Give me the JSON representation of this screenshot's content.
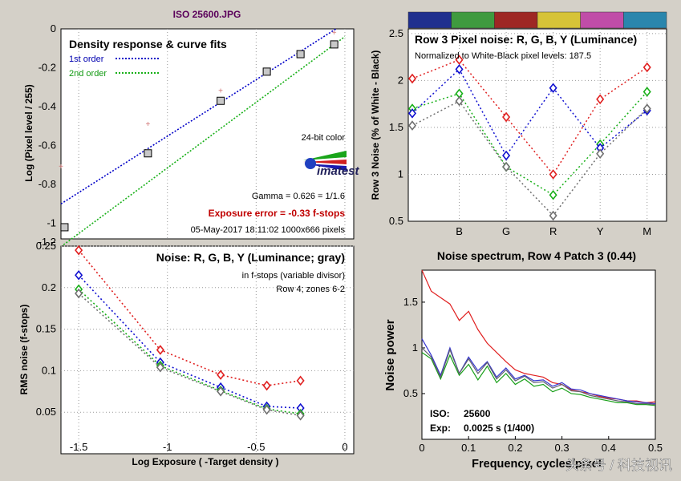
{
  "file_title": "ISO 25600.JPG",
  "watermark": "头条号 / 科技视讯",
  "imatest_logo_text": "imatest",
  "chart_data": [
    {
      "type": "scatter",
      "title": "Density response & curve fits",
      "legend": [
        "1st order",
        "2nd order"
      ],
      "xlabel": "Log Exposure ( -Target density )",
      "ylabel": "Log (Pixel level / 255)",
      "xlim": [
        -1.6,
        0.05
      ],
      "ylim": [
        -1.08,
        0
      ],
      "xticks": [
        "-1.5",
        "-1",
        "-0.5",
        "0"
      ],
      "yticks": [
        "0",
        "-0.2",
        "-0.4",
        "-0.6",
        "-0.8",
        "-1",
        "-1.2"
      ],
      "measured": {
        "x": [
          -1.58,
          -1.11,
          -0.7,
          -0.44,
          -0.25,
          -0.06
        ],
        "y": [
          -1.02,
          -0.64,
          -0.37,
          -0.22,
          -0.13,
          -0.08
        ]
      },
      "density_points": {
        "x": [
          -1.6,
          -1.11,
          -0.7,
          -0.06
        ],
        "y": [
          -0.71,
          -0.49,
          -0.32,
          -0.02
        ]
      },
      "fit_1st": {
        "x": [
          -1.6,
          -0.05
        ],
        "y": [
          -0.9,
          0.0
        ]
      },
      "fit_2nd": {
        "x": [
          -1.6,
          0.0
        ],
        "y": [
          -1.12,
          -0.04
        ]
      },
      "annotations": {
        "color_depth": "24-bit color",
        "gamma": "Gamma = 0.626 = 1/1.6",
        "exposure_error": "Exposure error = -0.33 f-stops",
        "date_size": "05-May-2017 18:11:02    1000x666 pixels"
      }
    },
    {
      "type": "line",
      "title": "Row 3 Pixel noise: R, G, B, Y (Luminance)",
      "subtitle": "Normalized to White-Black pixel levels: 187.5",
      "ylabel": "Row 3 Noise (% of White - Black)",
      "categories": [
        "",
        "B",
        "G",
        "R",
        "Y",
        "M"
      ],
      "ylim": [
        0.5,
        2.55
      ],
      "yticks": [
        "2.5",
        "2",
        "1.5",
        "1",
        "0.5"
      ],
      "swatch_colors": [
        "#1f2f8e",
        "#3f9a3f",
        "#9e2724",
        "#d6c338",
        "#c04da8",
        "#2a86ad"
      ],
      "series": [
        {
          "name": "R",
          "color": "#e02020",
          "values": [
            2.02,
            2.22,
            1.61,
            1.0,
            1.8,
            2.14
          ]
        },
        {
          "name": "G",
          "color": "#19b019",
          "values": [
            1.7,
            1.86,
            1.08,
            0.78,
            1.32,
            1.88
          ]
        },
        {
          "name": "B",
          "color": "#1010d0",
          "values": [
            1.65,
            2.12,
            1.2,
            1.92,
            1.28,
            1.68
          ]
        },
        {
          "name": "Y",
          "color": "#707070",
          "values": [
            1.52,
            1.78,
            1.08,
            0.56,
            1.22,
            1.7
          ]
        }
      ]
    },
    {
      "type": "line",
      "title": "Noise: R, G, B, Y (Luminance; gray)",
      "subtitle_1": "in f-stops (variable divisor)",
      "subtitle_2": "Row 4; zones 6-2",
      "xlabel": "Log Exposure ( -Target density )",
      "ylabel": "RMS noise (f-stops)",
      "xlim": [
        -1.6,
        0.05
      ],
      "ylim": [
        0,
        0.25
      ],
      "xticks": [
        "-1.5",
        "-1",
        "-0.5",
        "0"
      ],
      "yticks": [
        "0.25",
        "0.2",
        "0.15",
        "0.1",
        "0.05"
      ],
      "x": [
        -1.5,
        -1.04,
        -0.7,
        -0.44,
        -0.25
      ],
      "series": [
        {
          "name": "R",
          "color": "#e02020",
          "values": [
            0.245,
            0.125,
            0.095,
            0.082,
            0.088
          ]
        },
        {
          "name": "B",
          "color": "#1010d0",
          "values": [
            0.215,
            0.11,
            0.08,
            0.057,
            0.055
          ]
        },
        {
          "name": "G",
          "color": "#19b019",
          "values": [
            0.198,
            0.106,
            0.076,
            0.054,
            0.048
          ]
        },
        {
          "name": "Y",
          "color": "#707070",
          "values": [
            0.193,
            0.104,
            0.075,
            0.053,
            0.046
          ]
        }
      ]
    },
    {
      "type": "line",
      "title": "Noise spectrum, Row 4 Patch 3 (0.44)",
      "xlabel": "Frequency, cycles/pixel",
      "ylabel": "Noise power",
      "xlim": [
        0,
        0.5
      ],
      "ylim": [
        0,
        1.85
      ],
      "xticks": [
        "0",
        "0.1",
        "0.2",
        "0.3",
        "0.4",
        "0.5"
      ],
      "yticks": [
        "1.5",
        "1",
        "0.5"
      ],
      "info": {
        "iso_label": "ISO:",
        "iso_value": "25600",
        "exp_label": "Exp:",
        "exp_value": "0.0025 s  (1/400)"
      },
      "series": [
        {
          "name": "R",
          "color": "#e02020",
          "x": [
            0,
            0.02,
            0.04,
            0.06,
            0.08,
            0.1,
            0.12,
            0.14,
            0.16,
            0.18,
            0.2,
            0.22,
            0.24,
            0.26,
            0.28,
            0.3,
            0.32,
            0.34,
            0.36,
            0.38,
            0.4,
            0.42,
            0.44,
            0.46,
            0.48,
            0.5
          ],
          "values": [
            1.85,
            1.62,
            1.55,
            1.48,
            1.3,
            1.4,
            1.2,
            1.05,
            0.95,
            0.85,
            0.76,
            0.72,
            0.7,
            0.68,
            0.62,
            0.6,
            0.54,
            0.52,
            0.5,
            0.47,
            0.45,
            0.44,
            0.42,
            0.42,
            0.4,
            0.41
          ]
        },
        {
          "name": "B",
          "color": "#3535d0",
          "x": [
            0,
            0.02,
            0.04,
            0.06,
            0.08,
            0.1,
            0.12,
            0.14,
            0.16,
            0.18,
            0.2,
            0.22,
            0.24,
            0.26,
            0.28,
            0.3,
            0.32,
            0.34,
            0.36,
            0.38,
            0.4,
            0.42,
            0.44,
            0.46,
            0.48,
            0.5
          ],
          "values": [
            1.1,
            0.92,
            0.7,
            1.0,
            0.72,
            0.9,
            0.75,
            0.85,
            0.68,
            0.78,
            0.66,
            0.7,
            0.64,
            0.65,
            0.58,
            0.62,
            0.55,
            0.54,
            0.5,
            0.48,
            0.46,
            0.44,
            0.42,
            0.41,
            0.4,
            0.39
          ]
        },
        {
          "name": "G",
          "color": "#1aa01a",
          "x": [
            0,
            0.02,
            0.04,
            0.06,
            0.08,
            0.1,
            0.12,
            0.14,
            0.16,
            0.18,
            0.2,
            0.22,
            0.24,
            0.26,
            0.28,
            0.3,
            0.32,
            0.34,
            0.36,
            0.38,
            0.4,
            0.42,
            0.44,
            0.46,
            0.48,
            0.5
          ],
          "values": [
            0.95,
            0.88,
            0.66,
            0.92,
            0.7,
            0.82,
            0.65,
            0.8,
            0.62,
            0.72,
            0.6,
            0.66,
            0.58,
            0.6,
            0.52,
            0.56,
            0.5,
            0.49,
            0.46,
            0.44,
            0.42,
            0.4,
            0.4,
            0.38,
            0.38,
            0.37
          ]
        },
        {
          "name": "Y",
          "color": "#606070",
          "x": [
            0,
            0.02,
            0.04,
            0.06,
            0.08,
            0.1,
            0.12,
            0.14,
            0.16,
            0.18,
            0.2,
            0.22,
            0.24,
            0.26,
            0.28,
            0.3,
            0.32,
            0.34,
            0.36,
            0.38,
            0.4,
            0.42,
            0.44,
            0.46,
            0.48,
            0.5
          ],
          "values": [
            1.0,
            0.9,
            0.68,
            0.98,
            0.72,
            0.88,
            0.72,
            0.84,
            0.66,
            0.76,
            0.64,
            0.69,
            0.62,
            0.63,
            0.56,
            0.6,
            0.53,
            0.52,
            0.48,
            0.46,
            0.44,
            0.42,
            0.41,
            0.39,
            0.39,
            0.38
          ]
        }
      ]
    }
  ]
}
